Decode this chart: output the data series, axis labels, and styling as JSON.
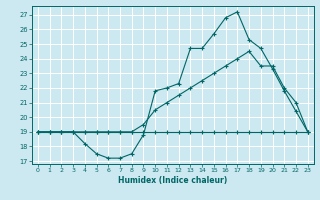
{
  "xlabel": "Humidex (Indice chaleur)",
  "bg_color": "#cce8f0",
  "line_color": "#006666",
  "grid_color": "#ffffff",
  "xlim": [
    -0.5,
    23.5
  ],
  "ylim": [
    16.8,
    27.6
  ],
  "yticks": [
    17,
    18,
    19,
    20,
    21,
    22,
    23,
    24,
    25,
    26,
    27
  ],
  "xticks": [
    0,
    1,
    2,
    3,
    4,
    5,
    6,
    7,
    8,
    9,
    10,
    11,
    12,
    13,
    14,
    15,
    16,
    17,
    18,
    19,
    20,
    21,
    22,
    23
  ],
  "line1_x": [
    0,
    1,
    2,
    3,
    4,
    5,
    6,
    7,
    8,
    9,
    10,
    11,
    12,
    13,
    14,
    15,
    16,
    17,
    18,
    19,
    20,
    21,
    22,
    23
  ],
  "line1_y": [
    19,
    19,
    19,
    19,
    19,
    19,
    19,
    19,
    19,
    19,
    19,
    19,
    19,
    19,
    19,
    19,
    19,
    19,
    19,
    19,
    19,
    19,
    19,
    19
  ],
  "line2_x": [
    0,
    1,
    2,
    3,
    4,
    5,
    6,
    7,
    8,
    9,
    10,
    11,
    12,
    13,
    14,
    15,
    16,
    17,
    18,
    19,
    20,
    21,
    22,
    23
  ],
  "line2_y": [
    19,
    19,
    19,
    19,
    18.2,
    17.5,
    17.2,
    17.2,
    17.5,
    18.8,
    21.8,
    22.0,
    22.3,
    24.7,
    24.7,
    25.7,
    26.8,
    27.2,
    25.3,
    24.7,
    23.3,
    21.8,
    20.4,
    19.0
  ],
  "line3_x": [
    0,
    1,
    2,
    3,
    4,
    5,
    6,
    7,
    8,
    9,
    10,
    11,
    12,
    13,
    14,
    15,
    16,
    17,
    18,
    19,
    20,
    21,
    22,
    23
  ],
  "line3_y": [
    19,
    19,
    19,
    19,
    19,
    19,
    19,
    19,
    19,
    19.5,
    20.5,
    21.0,
    21.5,
    22.0,
    22.5,
    23.0,
    23.5,
    24.0,
    24.5,
    23.5,
    23.5,
    22.0,
    21.0,
    19.0
  ]
}
